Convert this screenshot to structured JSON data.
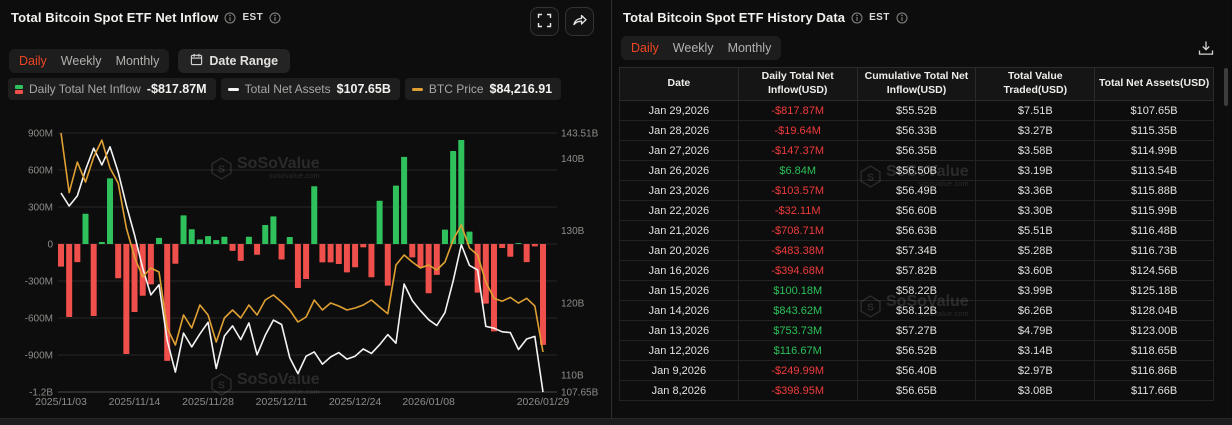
{
  "watermark": {
    "name": "SoSoValue",
    "domain": "sosovalue.com"
  },
  "colors": {
    "positive": "#2fc15c",
    "negative": "#f0504c",
    "positive_text": "#2bc158",
    "negative_text": "#f03b3b",
    "assets_line": "#f4f4f4",
    "btc_line": "#dfa033",
    "active_tab": "#ef4523",
    "axis_text": "#8e8c88",
    "grid_line": "#262626",
    "axis_line": "#4a4a4a"
  },
  "left_panel": {
    "title": "Total Bitcoin Spot ETF Net Inflow",
    "est_label": "EST",
    "tabs": [
      "Daily",
      "Weekly",
      "Monthly"
    ],
    "active_tab": "Daily",
    "date_range_label": "Date Range",
    "legend": [
      {
        "label": "Daily Total Net Inflow",
        "value": "-$817.87M",
        "icon": "candle"
      },
      {
        "label": "Total Net Assets",
        "value": "$107.65B",
        "icon": "dash",
        "color": "#f4f4f4"
      },
      {
        "label": "BTC Price",
        "value": "$84,216.91",
        "icon": "dash",
        "color": "#dfa033"
      }
    ]
  },
  "chart_data": {
    "type": "bar+line",
    "x": [
      "2025/11/03",
      "2025/11/04",
      "2025/11/05",
      "2025/11/06",
      "2025/11/07",
      "2025/11/10",
      "2025/11/11",
      "2025/11/12",
      "2025/11/13",
      "2025/11/14",
      "2025/11/17",
      "2025/11/18",
      "2025/11/19",
      "2025/11/20",
      "2025/11/21",
      "2025/11/24",
      "2025/11/25",
      "2025/11/26",
      "2025/11/28",
      "2025/12/01",
      "2025/12/02",
      "2025/12/03",
      "2025/12/04",
      "2025/12/05",
      "2025/12/08",
      "2025/12/09",
      "2025/12/10",
      "2025/12/11",
      "2025/12/12",
      "2025/12/15",
      "2025/12/16",
      "2025/12/17",
      "2025/12/18",
      "2025/12/19",
      "2025/12/22",
      "2025/12/23",
      "2025/12/24",
      "2025/12/26",
      "2025/12/29",
      "2025/12/30",
      "2025/12/31",
      "2026/01/02",
      "2026/01/05",
      "2026/01/06",
      "2026/01/07",
      "2026/01/08",
      "2026/01/09",
      "2026/01/12",
      "2026/01/13",
      "2026/01/14",
      "2026/01/15",
      "2026/01/16",
      "2026/01/20",
      "2026/01/21",
      "2026/01/22",
      "2026/01/23",
      "2026/01/26",
      "2026/01/27",
      "2026/01/28",
      "2026/01/29"
    ],
    "x_tick_indices": [
      0,
      9,
      18,
      27,
      36,
      45,
      59
    ],
    "x_tick_labels": [
      "2025/11/03",
      "2025/11/14",
      "2025/11/28",
      "2025/12/11",
      "2025/12/24",
      "2026/01/08",
      "2026/01/29"
    ],
    "left_axis": {
      "min": -1200,
      "max": 900,
      "ticks": [
        {
          "v": 900,
          "label": "900M"
        },
        {
          "v": 600,
          "label": "600M"
        },
        {
          "v": 300,
          "label": "300M"
        },
        {
          "v": 0,
          "label": "0"
        },
        {
          "v": -300,
          "label": "-300M"
        },
        {
          "v": -600,
          "label": "-600M"
        },
        {
          "v": -900,
          "label": "-900M"
        },
        {
          "v": -1200,
          "label": "-1.2B"
        }
      ]
    },
    "right_axis": {
      "min": 107.65,
      "max": 143.51,
      "ticks": [
        {
          "v": 143.51,
          "label": "143.51B"
        },
        {
          "v": 140,
          "label": "140B"
        },
        {
          "v": 130,
          "label": "130B"
        },
        {
          "v": 120,
          "label": "120B"
        },
        {
          "v": 110,
          "label": "110B"
        },
        {
          "v": 107.65,
          "label": "107.65B"
        }
      ]
    },
    "series": [
      {
        "name": "Daily Total Net Inflow",
        "type": "bar",
        "unit": "M USD",
        "values": [
          -183,
          -592,
          -147,
          245,
          -584,
          16,
          532,
          -278,
          -892,
          -551,
          -420,
          -327,
          50,
          -948,
          -160,
          232,
          120,
          36,
          64,
          31,
          59,
          -56,
          -137,
          59,
          -87,
          154,
          224,
          -126,
          57,
          -357,
          -284,
          468,
          -149,
          -149,
          -162,
          -230,
          -189,
          -27,
          -270,
          351,
          -338,
          473,
          706,
          -108,
          -189,
          -398.95,
          -249.99,
          116.67,
          753.73,
          843.62,
          100.18,
          -394.68,
          -483.38,
          -708.71,
          -32.11,
          -103.57,
          6.84,
          -147.37,
          -19.64,
          -817.87
        ]
      },
      {
        "name": "Total Net Assets",
        "type": "line",
        "unit": "B USD",
        "values": [
          135.2,
          133.4,
          134.8,
          138.4,
          141.4,
          139.1,
          141.6,
          138.1,
          133.5,
          129.4,
          124.8,
          121.1,
          122.5,
          114.8,
          110.4,
          115.8,
          113.9,
          115.7,
          117.3,
          110.9,
          115.4,
          116.8,
          114.9,
          117.2,
          112.8,
          115.5,
          117.6,
          117.0,
          112.4,
          110.2,
          112.6,
          113.2,
          111.5,
          112.5,
          113.1,
          112.2,
          112.6,
          113.6,
          113.0,
          114.2,
          115.6,
          114.4,
          122.6,
          120.3,
          118.9,
          117.66,
          116.86,
          118.65,
          123.0,
          128.04,
          125.18,
          124.56,
          116.73,
          116.48,
          115.99,
          115.88,
          113.54,
          114.99,
          115.35,
          107.65
        ]
      },
      {
        "name": "BTC Price",
        "type": "line",
        "unit": "USD",
        "values": [
          107000,
          100800,
          103977,
          101897,
          104497,
          106265,
          103353,
          101793,
          97113,
          94097,
          92017,
          92953,
          92537,
          86713,
          84945,
          88065,
          86713,
          89105,
          88065,
          85257,
          87753,
          88585,
          87753,
          89105,
          88065,
          89625,
          90145,
          89417,
          88585,
          87337,
          87857,
          89625,
          88585,
          89313,
          89001,
          88585,
          88793,
          89105,
          89625,
          88900,
          88200,
          93265,
          94305,
          93577,
          92953,
          93265,
          92745,
          93577,
          95865,
          97425,
          95033,
          94305,
          91497,
          89800,
          89500,
          89900,
          89300,
          89800,
          89000,
          84216.91
        ]
      }
    ]
  },
  "right_panel": {
    "title": "Total Bitcoin Spot ETF History Data",
    "est_label": "EST",
    "tabs": [
      "Daily",
      "Weekly",
      "Monthly"
    ],
    "active_tab": "Daily",
    "columns": [
      "Date",
      "Daily Total Net Inflow(USD)",
      "Cumulative Total Net Inflow(USD)",
      "Total Value Traded(USD)",
      "Total Net Assets(USD)"
    ],
    "rows": [
      {
        "date": "Jan 29,2026",
        "daily": "-$817.87M",
        "sign": "neg",
        "cumulative": "$55.52B",
        "traded": "$7.51B",
        "assets": "$107.65B"
      },
      {
        "date": "Jan 28,2026",
        "daily": "-$19.64M",
        "sign": "neg",
        "cumulative": "$56.33B",
        "traded": "$3.27B",
        "assets": "$115.35B"
      },
      {
        "date": "Jan 27,2026",
        "daily": "-$147.37M",
        "sign": "neg",
        "cumulative": "$56.35B",
        "traded": "$3.58B",
        "assets": "$114.99B"
      },
      {
        "date": "Jan 26,2026",
        "daily": "$6.84M",
        "sign": "pos",
        "cumulative": "$56.50B",
        "traded": "$3.19B",
        "assets": "$113.54B"
      },
      {
        "date": "Jan 23,2026",
        "daily": "-$103.57M",
        "sign": "neg",
        "cumulative": "$56.49B",
        "traded": "$3.36B",
        "assets": "$115.88B"
      },
      {
        "date": "Jan 22,2026",
        "daily": "-$32.11M",
        "sign": "neg",
        "cumulative": "$56.60B",
        "traded": "$3.30B",
        "assets": "$115.99B"
      },
      {
        "date": "Jan 21,2026",
        "daily": "-$708.71M",
        "sign": "neg",
        "cumulative": "$56.63B",
        "traded": "$5.51B",
        "assets": "$116.48B"
      },
      {
        "date": "Jan 20,2026",
        "daily": "-$483.38M",
        "sign": "neg",
        "cumulative": "$57.34B",
        "traded": "$5.28B",
        "assets": "$116.73B"
      },
      {
        "date": "Jan 16,2026",
        "daily": "-$394.68M",
        "sign": "neg",
        "cumulative": "$57.82B",
        "traded": "$3.60B",
        "assets": "$124.56B"
      },
      {
        "date": "Jan 15,2026",
        "daily": "$100.18M",
        "sign": "pos",
        "cumulative": "$58.22B",
        "traded": "$3.99B",
        "assets": "$125.18B"
      },
      {
        "date": "Jan 14,2026",
        "daily": "$843.62M",
        "sign": "pos",
        "cumulative": "$58.12B",
        "traded": "$6.26B",
        "assets": "$128.04B"
      },
      {
        "date": "Jan 13,2026",
        "daily": "$753.73M",
        "sign": "pos",
        "cumulative": "$57.27B",
        "traded": "$4.79B",
        "assets": "$123.00B"
      },
      {
        "date": "Jan 12,2026",
        "daily": "$116.67M",
        "sign": "pos",
        "cumulative": "$56.52B",
        "traded": "$3.14B",
        "assets": "$118.65B"
      },
      {
        "date": "Jan 9,2026",
        "daily": "-$249.99M",
        "sign": "neg",
        "cumulative": "$56.40B",
        "traded": "$2.97B",
        "assets": "$116.86B"
      },
      {
        "date": "Jan 8,2026",
        "daily": "-$398.95M",
        "sign": "neg",
        "cumulative": "$56.65B",
        "traded": "$3.08B",
        "assets": "$117.66B"
      }
    ]
  }
}
